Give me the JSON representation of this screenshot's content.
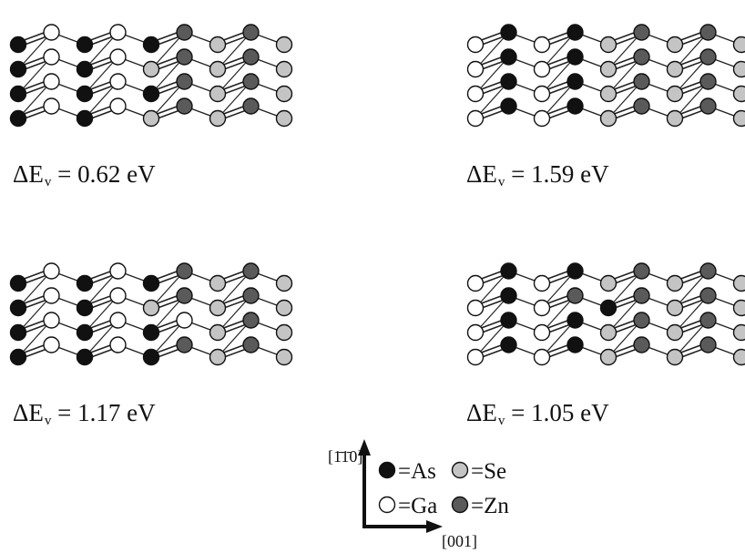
{
  "colors": {
    "As": "#111111",
    "Ga": "#ffffff",
    "Se": "#c4c4c4",
    "Zn": "#5a5a5a",
    "line": "#222222"
  },
  "panels": [
    {
      "id": "top-left",
      "label": "ΔE",
      "sub": "v",
      "value": "= 0.62 eV",
      "rows": [
        [
          "As",
          "Ga",
          "As",
          "Ga",
          "As",
          "Zn",
          "Se",
          "Zn",
          "Se"
        ],
        [
          "As",
          "Ga",
          "As",
          "Ga",
          "Se",
          "Zn",
          "Se",
          "Zn",
          "Se"
        ],
        [
          "As",
          "Ga",
          "As",
          "Ga",
          "As",
          "Zn",
          "Se",
          "Zn",
          "Se"
        ],
        [
          "As",
          "Ga",
          "As",
          "Ga",
          "Se",
          "Zn",
          "Se",
          "Zn",
          "Se"
        ]
      ]
    },
    {
      "id": "top-right",
      "label": "ΔE",
      "sub": "v",
      "value": "= 1.59 eV",
      "rows": [
        [
          "Ga",
          "As",
          "Ga",
          "As",
          "Se",
          "Zn",
          "Se",
          "Zn",
          "Se"
        ],
        [
          "Ga",
          "As",
          "Ga",
          "As",
          "Se",
          "Zn",
          "Se",
          "Zn",
          "Se"
        ],
        [
          "Ga",
          "As",
          "Ga",
          "As",
          "Se",
          "Zn",
          "Se",
          "Zn",
          "Se"
        ],
        [
          "Ga",
          "As",
          "Ga",
          "As",
          "Se",
          "Zn",
          "Se",
          "Zn",
          "Se"
        ]
      ]
    },
    {
      "id": "bottom-left",
      "label": "ΔE",
      "sub": "v",
      "value": "= 1.17 eV",
      "rows": [
        [
          "As",
          "Ga",
          "As",
          "Ga",
          "As",
          "Zn",
          "Se",
          "Zn",
          "Se"
        ],
        [
          "As",
          "Ga",
          "As",
          "Ga",
          "Se",
          "Zn",
          "Se",
          "Zn",
          "Se"
        ],
        [
          "As",
          "Ga",
          "As",
          "Ga",
          "As",
          "Ga",
          "Se",
          "Zn",
          "Se"
        ],
        [
          "As",
          "Ga",
          "As",
          "Ga",
          "As",
          "Zn",
          "Se",
          "Zn",
          "Se"
        ]
      ]
    },
    {
      "id": "bottom-right",
      "label": "ΔE",
      "sub": "v",
      "value": "= 1.05 eV",
      "rows": [
        [
          "Ga",
          "As",
          "Ga",
          "As",
          "Se",
          "Zn",
          "Se",
          "Zn",
          "Se"
        ],
        [
          "Ga",
          "As",
          "Ga",
          "Zn",
          "As",
          "Zn",
          "Se",
          "Zn",
          "Se"
        ],
        [
          "Ga",
          "As",
          "Ga",
          "As",
          "Se",
          "Zn",
          "Se",
          "Zn",
          "Se"
        ],
        [
          "Ga",
          "As",
          "Ga",
          "As",
          "Se",
          "Zn",
          "Se",
          "Zn",
          "Se"
        ]
      ]
    }
  ],
  "legend": [
    {
      "element": "As",
      "text": "=As"
    },
    {
      "element": "Se",
      "text": "=Se"
    },
    {
      "element": "Ga",
      "text": "=Ga"
    },
    {
      "element": "Zn",
      "text": "=Zn"
    }
  ],
  "axes": {
    "vertical": "[1̄1̄0]",
    "horizontal": "[001]"
  }
}
